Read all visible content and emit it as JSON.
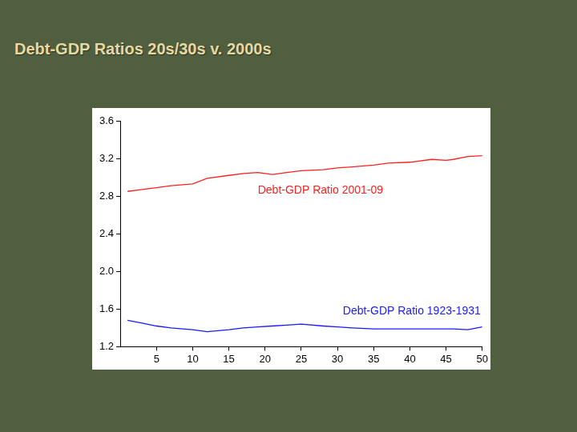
{
  "chart_data": {
    "type": "line",
    "title": "Debt-GDP Ratios 20s/30s v. 2000s",
    "x": [
      1,
      3,
      5,
      7,
      10,
      12,
      15,
      17,
      19,
      21,
      23,
      25,
      28,
      30,
      32,
      35,
      37,
      40,
      43,
      45,
      46,
      48,
      50
    ],
    "series": [
      {
        "name": "Debt-GDP Ratio 2001-09",
        "color": "#ff2020",
        "values": [
          2.85,
          2.87,
          2.89,
          2.91,
          2.93,
          2.99,
          3.02,
          3.04,
          3.05,
          3.03,
          3.05,
          3.07,
          3.08,
          3.1,
          3.11,
          3.13,
          3.15,
          3.16,
          3.19,
          3.18,
          3.19,
          3.22,
          3.23
        ]
      },
      {
        "name": "Debt-GDP Ratio 1923-1931",
        "color": "#1a1aff",
        "values": [
          1.48,
          1.45,
          1.42,
          1.4,
          1.38,
          1.36,
          1.38,
          1.4,
          1.41,
          1.42,
          1.43,
          1.44,
          1.42,
          1.41,
          1.4,
          1.39,
          1.39,
          1.39,
          1.39,
          1.39,
          1.39,
          1.38,
          1.41
        ]
      }
    ],
    "xlim": [
      0,
      50
    ],
    "xticks": [
      5,
      10,
      15,
      20,
      25,
      30,
      35,
      40,
      45,
      50
    ],
    "ylim": [
      1.2,
      3.6
    ],
    "yticks": [
      1.2,
      1.6,
      {
        "value": 2,
        "label": "2.0"
      },
      2.4,
      2.8,
      3.2,
      3.6
    ],
    "grid": false
  }
}
